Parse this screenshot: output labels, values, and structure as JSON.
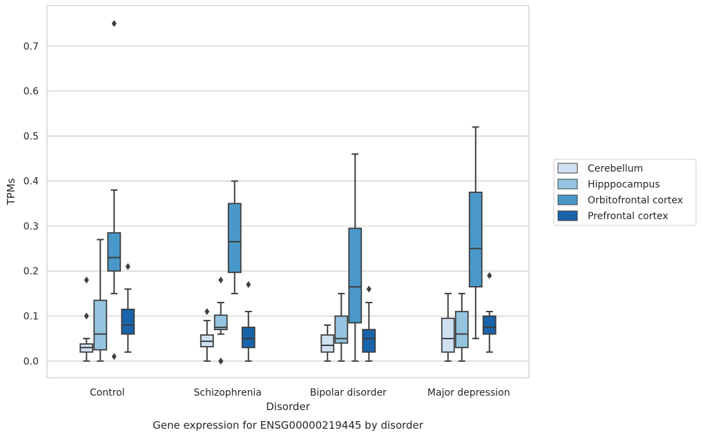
{
  "chart_data": {
    "type": "box",
    "title": "",
    "caption": "Gene expression for ENSG00000219445 by disorder",
    "xlabel": "Disorder",
    "ylabel": "TPMs",
    "ylim": [
      -0.037,
      0.79
    ],
    "yticks": [
      "0.0",
      "0.1",
      "0.2",
      "0.3",
      "0.4",
      "0.5",
      "0.6",
      "0.7"
    ],
    "grid": "horizontal",
    "legend_position": "right",
    "categories": [
      "Control",
      "Schizophrenia",
      "Bipolar disorder",
      "Major depression"
    ],
    "series": [
      {
        "name": "Cerebellum",
        "color": "#d0e1f2",
        "boxes": [
          {
            "whisker_low": 0.0,
            "q1": 0.02,
            "median": 0.03,
            "q3": 0.038,
            "whisker_high": 0.05,
            "outliers": [
              0.1,
              0.18
            ]
          },
          {
            "whisker_low": 0.0,
            "q1": 0.032,
            "median": 0.044,
            "q3": 0.058,
            "whisker_high": 0.09,
            "outliers": [
              0.11
            ]
          },
          {
            "whisker_low": 0.0,
            "q1": 0.02,
            "median": 0.035,
            "q3": 0.058,
            "whisker_high": 0.08,
            "outliers": []
          },
          {
            "whisker_low": 0.0,
            "q1": 0.02,
            "median": 0.05,
            "q3": 0.095,
            "whisker_high": 0.15,
            "outliers": []
          }
        ]
      },
      {
        "name": "Hipppocampus",
        "color": "#94c4df",
        "boxes": [
          {
            "whisker_low": 0.0,
            "q1": 0.025,
            "median": 0.06,
            "q3": 0.135,
            "whisker_high": 0.27,
            "outliers": []
          },
          {
            "whisker_low": 0.06,
            "q1": 0.07,
            "median": 0.075,
            "q3": 0.102,
            "whisker_high": 0.13,
            "outliers": [
              0.18,
              0.0,
              0.0
            ]
          },
          {
            "whisker_low": 0.0,
            "q1": 0.04,
            "median": 0.05,
            "q3": 0.1,
            "whisker_high": 0.15,
            "outliers": []
          },
          {
            "whisker_low": 0.0,
            "q1": 0.03,
            "median": 0.06,
            "q3": 0.11,
            "whisker_high": 0.15,
            "outliers": []
          }
        ]
      },
      {
        "name": "Orbitofrontal cortex",
        "color": "#4a98c9",
        "boxes": [
          {
            "whisker_low": 0.15,
            "q1": 0.2,
            "median": 0.23,
            "q3": 0.285,
            "whisker_high": 0.38,
            "outliers": [
              0.75,
              0.01
            ]
          },
          {
            "whisker_low": 0.15,
            "q1": 0.197,
            "median": 0.265,
            "q3": 0.35,
            "whisker_high": 0.4,
            "outliers": []
          },
          {
            "whisker_low": 0.0,
            "q1": 0.085,
            "median": 0.165,
            "q3": 0.295,
            "whisker_high": 0.46,
            "outliers": []
          },
          {
            "whisker_low": 0.05,
            "q1": 0.165,
            "median": 0.25,
            "q3": 0.375,
            "whisker_high": 0.52,
            "outliers": []
          }
        ]
      },
      {
        "name": "Prefrontal cortex",
        "color": "#1764ab",
        "boxes": [
          {
            "whisker_low": 0.02,
            "q1": 0.06,
            "median": 0.08,
            "q3": 0.115,
            "whisker_high": 0.16,
            "outliers": [
              0.21
            ]
          },
          {
            "whisker_low": 0.0,
            "q1": 0.03,
            "median": 0.05,
            "q3": 0.075,
            "whisker_high": 0.11,
            "outliers": [
              0.17
            ]
          },
          {
            "whisker_low": 0.0,
            "q1": 0.02,
            "median": 0.05,
            "q3": 0.07,
            "whisker_high": 0.13,
            "outliers": [
              0.16
            ]
          },
          {
            "whisker_low": 0.02,
            "q1": 0.06,
            "median": 0.075,
            "q3": 0.1,
            "whisker_high": 0.11,
            "outliers": [
              0.19
            ]
          }
        ]
      }
    ]
  }
}
